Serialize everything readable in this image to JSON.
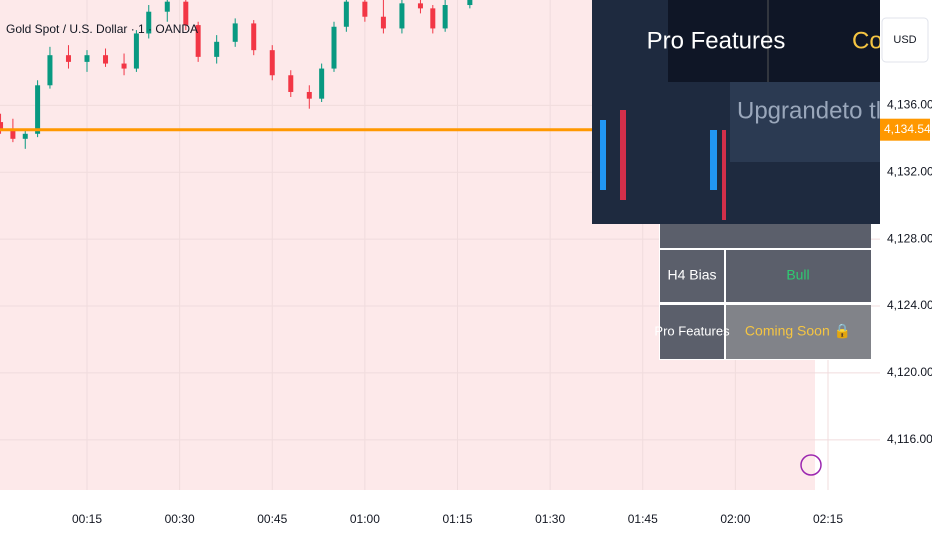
{
  "chart_data": {
    "type": "candlestick",
    "title": "Gold Spot / U.S. Dollar · 1 · OANDA",
    "currency": "USD",
    "up_color": "#089981",
    "down_color": "#f23645",
    "price_line_color": "#ff9800",
    "last_price": {
      "value": 4134.545,
      "label": "4,134.545"
    },
    "ylim": [
      4142.3,
      4113.0
    ],
    "yticks": [
      {
        "value": 4136,
        "label": "4,136.000"
      },
      {
        "value": 4132,
        "label": "4,132.000"
      },
      {
        "value": 4128,
        "label": "4,128.000"
      },
      {
        "value": 4124,
        "label": "4,124.000"
      },
      {
        "value": 4120,
        "label": "4,120.000"
      },
      {
        "value": 4116,
        "label": "4,116.000"
      }
    ],
    "xticks": [
      "00:15",
      "00:30",
      "00:45",
      "01:00",
      "01:15",
      "01:30",
      "01:45",
      "02:00",
      "02:15"
    ],
    "candles": [
      {
        "x": "00:01",
        "open": 4135.0,
        "high": 4135.5,
        "low": 4134.3,
        "close": 4134.6
      },
      {
        "x": "00:03",
        "open": 4134.6,
        "high": 4135.2,
        "low": 4133.8,
        "close": 4134.0
      },
      {
        "x": "00:05",
        "open": 4134.0,
        "high": 4134.5,
        "low": 4133.4,
        "close": 4134.3
      },
      {
        "x": "00:07",
        "open": 4134.3,
        "high": 4137.5,
        "low": 4134.1,
        "close": 4137.2
      },
      {
        "x": "00:09",
        "open": 4137.2,
        "high": 4139.5,
        "low": 4137.0,
        "close": 4139.0
      },
      {
        "x": "00:12",
        "open": 4139.0,
        "high": 4139.6,
        "low": 4138.2,
        "close": 4138.6
      },
      {
        "x": "00:15",
        "open": 4138.6,
        "high": 4139.3,
        "low": 4138.0,
        "close": 4139.0
      },
      {
        "x": "00:18",
        "open": 4139.0,
        "high": 4139.4,
        "low": 4138.3,
        "close": 4138.5
      },
      {
        "x": "00:21",
        "open": 4138.5,
        "high": 4139.1,
        "low": 4137.8,
        "close": 4138.2
      },
      {
        "x": "00:23",
        "open": 4138.2,
        "high": 4140.5,
        "low": 4138.0,
        "close": 4140.3
      },
      {
        "x": "00:25",
        "open": 4140.3,
        "high": 4142.0,
        "low": 4140.0,
        "close": 4141.6
      },
      {
        "x": "00:28",
        "open": 4141.6,
        "high": 4142.5,
        "low": 4141.0,
        "close": 4142.2
      },
      {
        "x": "00:31",
        "open": 4142.2,
        "high": 4142.4,
        "low": 4140.5,
        "close": 4140.8
      },
      {
        "x": "00:33",
        "open": 4140.8,
        "high": 4141.0,
        "low": 4138.6,
        "close": 4138.9
      },
      {
        "x": "00:36",
        "open": 4138.9,
        "high": 4140.2,
        "low": 4138.5,
        "close": 4139.8
      },
      {
        "x": "00:39",
        "open": 4139.8,
        "high": 4141.2,
        "low": 4139.5,
        "close": 4140.9
      },
      {
        "x": "00:42",
        "open": 4140.9,
        "high": 4141.1,
        "low": 4139.0,
        "close": 4139.3
      },
      {
        "x": "00:45",
        "open": 4139.3,
        "high": 4139.6,
        "low": 4137.5,
        "close": 4137.8
      },
      {
        "x": "00:48",
        "open": 4137.8,
        "high": 4138.1,
        "low": 4136.5,
        "close": 4136.8
      },
      {
        "x": "00:51",
        "open": 4136.8,
        "high": 4137.2,
        "low": 4135.8,
        "close": 4136.4
      },
      {
        "x": "00:53",
        "open": 4136.4,
        "high": 4138.5,
        "low": 4136.2,
        "close": 4138.2
      },
      {
        "x": "00:55",
        "open": 4138.2,
        "high": 4141.0,
        "low": 4138.0,
        "close": 4140.7
      },
      {
        "x": "00:57",
        "open": 4140.7,
        "high": 4142.5,
        "low": 4140.4,
        "close": 4142.2
      },
      {
        "x": "01:00",
        "open": 4142.2,
        "high": 4142.4,
        "low": 4141.0,
        "close": 4141.3
      },
      {
        "x": "01:03",
        "open": 4141.3,
        "high": 4142.3,
        "low": 4140.3,
        "close": 4140.6
      },
      {
        "x": "01:06",
        "open": 4140.6,
        "high": 4142.4,
        "low": 4140.3,
        "close": 4142.1
      },
      {
        "x": "01:09",
        "open": 4142.1,
        "high": 4142.4,
        "low": 4141.5,
        "close": 4141.8
      },
      {
        "x": "01:11",
        "open": 4141.8,
        "high": 4142.0,
        "low": 4140.3,
        "close": 4140.6
      },
      {
        "x": "01:13",
        "open": 4140.6,
        "high": 4142.3,
        "low": 4140.4,
        "close": 4142.0
      },
      {
        "x": "01:17",
        "open": 4142.0,
        "high": 4142.6,
        "low": 4141.8,
        "close": 4142.3
      }
    ],
    "overlay": {
      "header_left": "Pro Features",
      "header_right": "Coming Soon",
      "banner": "Upgrandeto tl Pro"
    },
    "table": {
      "rows": [
        [
          "H4 Bias",
          "Bull"
        ],
        [
          "Pro Features",
          "Coming Soon 🔒"
        ]
      ]
    }
  }
}
